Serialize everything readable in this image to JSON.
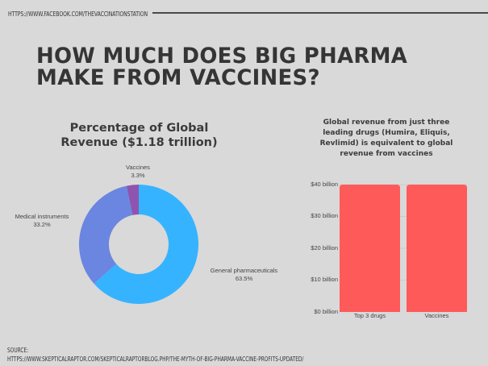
{
  "header": {
    "url": "HTTPS://WWW.FACEBOOK.COM/THEVACCINATIONSTATION",
    "title_line1": "HOW MUCH DOES BIG PHARMA",
    "title_line2": "MAKE FROM VACCINES?"
  },
  "pie": {
    "title_line1": "Percentage of Global",
    "title_line2": "Revenue ($1.18 trillion)",
    "slices": [
      {
        "label": "Vaccines",
        "value": "3.3%",
        "color": "#8e54b0"
      },
      {
        "label": "Medical instruments",
        "value": "33.2%",
        "color": "#6b86e0"
      },
      {
        "label": "General pharmaceuticals",
        "value": "63.5%",
        "color": "#36b3ff"
      }
    ]
  },
  "bar": {
    "title_line1": "Global revenue from just three",
    "title_line2": "leading drugs (Humira, Eliquis,",
    "title_line3": "Revlimid) is equivalent to global",
    "title_line4": "revenue from vaccines",
    "yticks": [
      "$40 billion",
      "$30 billion",
      "$20 billion",
      "$10 billion",
      "$0 billion"
    ],
    "categories": [
      "Top 3 drugs",
      "Vaccines"
    ],
    "bar_color": "#ff5a5a"
  },
  "footer": {
    "source_label": "SOURCE:",
    "source_url": "HTTPS://WWW.SKEPTICALRAPTOR.COM/SKEPTICALRAPTORBLOG.PHP/THE-MYTH-OF-BIG-PHARMA-VACCINE-PROFITS-UPDATED/"
  },
  "chart_data": [
    {
      "type": "pie",
      "title": "Percentage of Global Revenue ($1.18 trillion)",
      "categories": [
        "Vaccines",
        "Medical instruments",
        "General pharmaceuticals"
      ],
      "values": [
        3.3,
        33.2,
        63.5
      ],
      "donut": true,
      "colors": [
        "#8e54b0",
        "#6b86e0",
        "#36b3ff"
      ]
    },
    {
      "type": "bar",
      "title": "Global revenue from just three leading drugs (Humira, Eliquis, Revlimid) is equivalent to global revenue from vaccines",
      "categories": [
        "Top 3 drugs",
        "Vaccines"
      ],
      "values": [
        40,
        40
      ],
      "ylabel": "",
      "xlabel": "",
      "yunit": "billion USD",
      "ylim": [
        0,
        40
      ],
      "yticks": [
        0,
        10,
        20,
        30,
        40
      ],
      "grid": true,
      "color": "#ff5a5a"
    }
  ]
}
